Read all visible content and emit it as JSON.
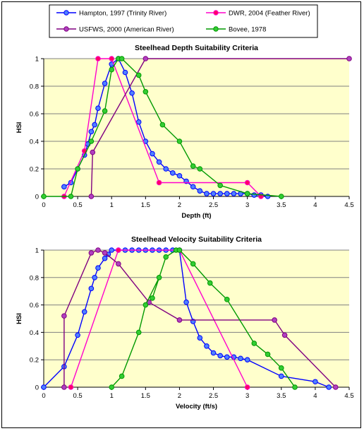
{
  "legend": {
    "entries": [
      {
        "label": "Hampton, 1997 (Trinity River)",
        "color": "#0000FF"
      },
      {
        "label": "DWR, 2004 (Feather River)",
        "color": "#FF00CC"
      },
      {
        "label": "USFWS, 2000 (American River)",
        "color": "#800080"
      },
      {
        "label": "Bovee, 1978",
        "color": "#009900"
      }
    ]
  },
  "chart_data": [
    {
      "type": "line",
      "title": "Steelhead Depth Suitability Criteria",
      "xlabel": "Depth (ft)",
      "ylabel": "HSI",
      "xlim": [
        0,
        4.5
      ],
      "ylim": [
        0,
        1
      ],
      "x_ticks": [
        "0",
        "0.5",
        "1",
        "1.5",
        "2",
        "2.5",
        "3",
        "3.5",
        "4",
        "4.5"
      ],
      "y_ticks": [
        "0",
        "0.2",
        "0.4",
        "0.6",
        "0.8",
        "1"
      ],
      "grid": true,
      "series": [
        {
          "name": "Hampton, 1997 (Trinity River)",
          "color": "#0000FF",
          "marker_fill": "#4F81FF",
          "x": [
            0.3,
            0.4,
            0.5,
            0.6,
            0.65,
            0.7,
            0.75,
            0.8,
            0.9,
            1.0,
            1.1,
            1.2,
            1.3,
            1.4,
            1.5,
            1.6,
            1.7,
            1.8,
            1.9,
            2.0,
            2.1,
            2.2,
            2.3,
            2.4,
            2.5,
            2.6,
            2.7,
            2.8,
            2.9,
            3.0,
            3.1,
            3.2,
            3.3
          ],
          "y": [
            0.07,
            0.1,
            0.2,
            0.3,
            0.38,
            0.47,
            0.52,
            0.64,
            0.82,
            0.96,
            1.0,
            0.9,
            0.75,
            0.54,
            0.4,
            0.31,
            0.25,
            0.2,
            0.17,
            0.15,
            0.11,
            0.07,
            0.04,
            0.02,
            0.02,
            0.02,
            0.02,
            0.02,
            0.02,
            0.02,
            0.01,
            0.01,
            0.0
          ]
        },
        {
          "name": "DWR, 2004 (Feather River)",
          "color": "#FF00CC",
          "marker_fill": "#FF0066",
          "x": [
            0.3,
            0.6,
            0.8,
            1.0,
            1.7,
            3.0,
            3.2
          ],
          "y": [
            0.0,
            0.33,
            1.0,
            1.0,
            0.1,
            0.1,
            0.0
          ]
        },
        {
          "name": "USFWS, 2000 (American River)",
          "color": "#800080",
          "marker_fill": "#B040C0",
          "x": [
            0.7,
            0.72,
            1.5,
            4.5
          ],
          "y": [
            0.0,
            0.32,
            1.0,
            1.0
          ]
        },
        {
          "name": "Bovee, 1978",
          "color": "#009900",
          "marker_fill": "#33CC33",
          "x": [
            0.0,
            0.4,
            0.5,
            0.7,
            0.9,
            1.0,
            1.1,
            1.15,
            1.4,
            1.5,
            1.75,
            2.0,
            2.2,
            2.3,
            2.6,
            3.0,
            3.5
          ],
          "y": [
            0.0,
            0.0,
            0.2,
            0.4,
            0.62,
            0.92,
            1.0,
            1.0,
            0.88,
            0.76,
            0.52,
            0.4,
            0.22,
            0.2,
            0.08,
            0.02,
            0.0
          ]
        }
      ]
    },
    {
      "type": "line",
      "title": "Steelhead Velocity Suitability Criteria",
      "xlabel": "Velocity (ft/s)",
      "ylabel": "HSI",
      "xlim": [
        0,
        4.5
      ],
      "ylim": [
        0,
        1
      ],
      "x_ticks": [
        "0",
        "0.5",
        "1",
        "1.5",
        "2",
        "2.5",
        "3",
        "3.5",
        "4",
        "4.5"
      ],
      "y_ticks": [
        "0",
        "0.2",
        "0.4",
        "0.6",
        "0.8",
        "1"
      ],
      "grid": true,
      "series": [
        {
          "name": "Hampton, 1997 (Trinity River)",
          "color": "#0000FF",
          "marker_fill": "#4F81FF",
          "x": [
            0.0,
            0.3,
            0.5,
            0.6,
            0.7,
            0.75,
            0.8,
            0.9,
            0.95,
            1.0,
            1.1,
            1.2,
            1.3,
            1.4,
            1.5,
            1.6,
            1.7,
            1.8,
            1.9,
            2.0,
            2.1,
            2.2,
            2.3,
            2.4,
            2.5,
            2.6,
            2.7,
            2.8,
            2.9,
            3.0,
            3.5,
            4.0,
            4.2
          ],
          "y": [
            0.0,
            0.15,
            0.38,
            0.55,
            0.72,
            0.8,
            0.87,
            0.94,
            0.97,
            1.0,
            1.0,
            1.0,
            1.0,
            1.0,
            1.0,
            1.0,
            1.0,
            1.0,
            1.0,
            1.0,
            0.62,
            0.48,
            0.36,
            0.3,
            0.25,
            0.23,
            0.22,
            0.22,
            0.21,
            0.2,
            0.08,
            0.04,
            0.0
          ]
        },
        {
          "name": "DWR, 2004 (Feather River)",
          "color": "#FF00CC",
          "marker_fill": "#FF0066",
          "x": [
            0.4,
            1.1,
            2.0,
            3.0
          ],
          "y": [
            0.0,
            1.0,
            1.0,
            0.0
          ]
        },
        {
          "name": "USFWS, 2000 (American River)",
          "color": "#800080",
          "marker_fill": "#B040C0",
          "x": [
            0.3,
            0.3,
            0.7,
            0.8,
            0.9,
            1.1,
            1.55,
            2.0,
            3.4,
            3.55,
            4.3
          ],
          "y": [
            0.0,
            0.52,
            0.98,
            1.0,
            0.98,
            0.9,
            0.62,
            0.49,
            0.49,
            0.38,
            0.0
          ]
        },
        {
          "name": "Bovee, 1978",
          "color": "#009900",
          "marker_fill": "#33CC33",
          "x": [
            1.0,
            1.15,
            1.4,
            1.5,
            1.7,
            1.6,
            1.8,
            1.95,
            2.0,
            2.2,
            2.45,
            2.7,
            3.1,
            3.3,
            3.5,
            3.7
          ],
          "y": [
            0.0,
            0.08,
            0.4,
            0.6,
            0.8,
            0.65,
            0.95,
            1.0,
            1.0,
            0.9,
            0.76,
            0.64,
            0.32,
            0.24,
            0.14,
            0.0
          ]
        }
      ]
    }
  ]
}
